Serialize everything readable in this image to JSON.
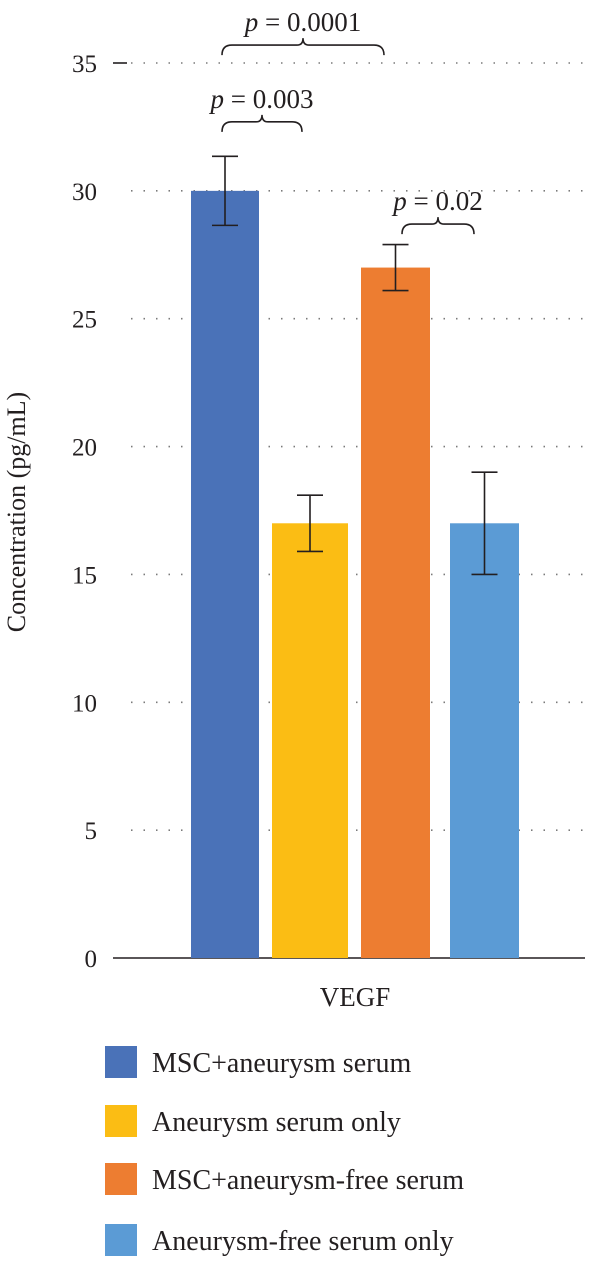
{
  "chart_data": {
    "type": "bar",
    "categories": [
      "VEGF"
    ],
    "series": [
      {
        "name": "MSC+aneurysm serum",
        "values": [
          30
        ],
        "error": [
          1.35
        ],
        "color": "#4a72b8"
      },
      {
        "name": "Aneurysm serum only",
        "values": [
          17
        ],
        "error": [
          1.1
        ],
        "color": "#fbbd14"
      },
      {
        "name": "MSC+aneurysm-free serum",
        "values": [
          27
        ],
        "error": [
          0.9
        ],
        "color": "#ed7d31"
      },
      {
        "name": "Aneurysm-free serum only",
        "values": [
          17
        ],
        "error": [
          2.0
        ],
        "color": "#5b9bd5"
      }
    ],
    "title": "",
    "xlabel": "",
    "ylabel": "Concentration (pg/mL)",
    "ylim": [
      0,
      35
    ],
    "yticks": [
      0,
      5,
      10,
      15,
      20,
      25,
      30,
      35
    ],
    "grid": true,
    "legend_position": "bottom",
    "annotations": [
      {
        "between": [
          "MSC+aneurysm serum",
          "MSC+aneurysm-free serum"
        ],
        "p_symbol": "p",
        "p_text": " = 0.0001",
        "y": 35.7
      },
      {
        "between": [
          "MSC+aneurysm serum",
          "Aneurysm serum only"
        ],
        "p_symbol": "p",
        "p_text": " = 0.003",
        "y": 32.7
      },
      {
        "between": [
          "MSC+aneurysm-free serum",
          "Aneurysm-free serum only"
        ],
        "p_symbol": "p",
        "p_text": " = 0.02",
        "y": 28.7
      }
    ]
  }
}
